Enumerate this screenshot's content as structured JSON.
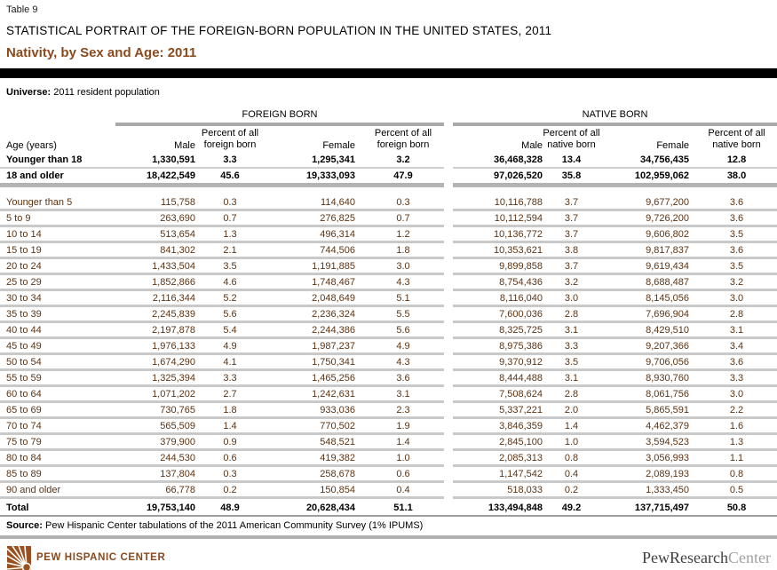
{
  "page": {
    "table_label": "Table 9",
    "report_title": "STATISTICAL PORTRAIT OF THE FOREIGN-BORN POPULATION IN THE UNITED STATES, 2011",
    "section_title": "Nativity, by Sex and Age: 2011",
    "universe_label": "Universe:",
    "universe_value": "2011 resident population"
  },
  "table": {
    "group_headers": [
      "FOREIGN BORN",
      "NATIVE BORN"
    ],
    "age_column_header": "Age (years)",
    "column_headers": [
      "Male",
      "Percent of all\nforeign born",
      "Female",
      "Percent of all\nforeign born",
      "Male",
      "Percent of all\nnative born",
      "Female",
      "Percent of all\nnative born"
    ],
    "summary_rows": [
      [
        "Younger than 18",
        "1,330,591",
        "3.3",
        "1,295,341",
        "3.2",
        "36,468,328",
        "13.4",
        "34,756,435",
        "12.8"
      ],
      [
        "18 and older",
        "18,422,549",
        "45.6",
        "19,333,093",
        "47.9",
        "97,026,520",
        "35.8",
        "102,959,062",
        "38.0"
      ]
    ],
    "detail_rows": [
      [
        "Younger than 5",
        "115,758",
        "0.3",
        "114,640",
        "0.3",
        "10,116,788",
        "3.7",
        "9,677,200",
        "3.6"
      ],
      [
        "5 to 9",
        "263,690",
        "0.7",
        "276,825",
        "0.7",
        "10,112,594",
        "3.7",
        "9,726,200",
        "3.6"
      ],
      [
        "10 to 14",
        "513,654",
        "1.3",
        "496,314",
        "1.2",
        "10,136,772",
        "3.7",
        "9,606,802",
        "3.5"
      ],
      [
        "15 to 19",
        "841,302",
        "2.1",
        "744,506",
        "1.8",
        "10,353,621",
        "3.8",
        "9,817,837",
        "3.6"
      ],
      [
        "20 to 24",
        "1,433,504",
        "3.5",
        "1,191,885",
        "3.0",
        "9,899,858",
        "3.7",
        "9,619,434",
        "3.5"
      ],
      [
        "25 to 29",
        "1,852,866",
        "4.6",
        "1,748,467",
        "4.3",
        "8,754,436",
        "3.2",
        "8,688,487",
        "3.2"
      ],
      [
        "30 to 34",
        "2,116,344",
        "5.2",
        "2,048,649",
        "5.1",
        "8,116,040",
        "3.0",
        "8,145,056",
        "3.0"
      ],
      [
        "35 to 39",
        "2,245,839",
        "5.6",
        "2,236,324",
        "5.5",
        "7,600,036",
        "2.8",
        "7,696,904",
        "2.8"
      ],
      [
        "40 to 44",
        "2,197,878",
        "5.4",
        "2,244,386",
        "5.6",
        "8,325,725",
        "3.1",
        "8,429,510",
        "3.1"
      ],
      [
        "45 to 49",
        "1,976,133",
        "4.9",
        "1,987,237",
        "4.9",
        "8,975,386",
        "3.3",
        "9,207,366",
        "3.4"
      ],
      [
        "50 to 54",
        "1,674,290",
        "4.1",
        "1,750,341",
        "4.3",
        "9,370,912",
        "3.5",
        "9,706,056",
        "3.6"
      ],
      [
        "55 to 59",
        "1,325,394",
        "3.3",
        "1,465,256",
        "3.6",
        "8,444,488",
        "3.1",
        "8,930,760",
        "3.3"
      ],
      [
        "60 to 64",
        "1,071,202",
        "2.7",
        "1,242,631",
        "3.1",
        "7,508,624",
        "2.8",
        "8,061,756",
        "3.0"
      ],
      [
        "65 to 69",
        "730,765",
        "1.8",
        "933,036",
        "2.3",
        "5,337,221",
        "2.0",
        "5,865,591",
        "2.2"
      ],
      [
        "70 to 74",
        "565,509",
        "1.4",
        "770,502",
        "1.9",
        "3,846,359",
        "1.4",
        "4,462,379",
        "1.6"
      ],
      [
        "75 to 79",
        "379,900",
        "0.9",
        "548,521",
        "1.4",
        "2,845,100",
        "1.0",
        "3,594,523",
        "1.3"
      ],
      [
        "80 to 84",
        "244,530",
        "0.6",
        "419,382",
        "1.0",
        "2,085,313",
        "0.8",
        "3,056,993",
        "1.1"
      ],
      [
        "85 to 89",
        "137,804",
        "0.3",
        "258,678",
        "0.6",
        "1,147,542",
        "0.4",
        "2,089,193",
        "0.8"
      ],
      [
        "90 and older",
        "66,778",
        "0.2",
        "150,854",
        "0.4",
        "518,033",
        "0.2",
        "1,333,450",
        "0.5"
      ]
    ],
    "total_row": [
      "Total",
      "19,753,140",
      "48.9",
      "20,628,434",
      "51.1",
      "133,494,848",
      "49.2",
      "137,715,497",
      "50.8"
    ],
    "source_label": "Source:",
    "source_text": "Pew Hispanic Center tabulations of the 2011 American Community Survey (1% IPUMS)"
  },
  "footer": {
    "left_org": "PEW HISPANIC CENTER",
    "right_org_primary": "PewResearch",
    "right_org_secondary": "Center"
  },
  "colors": {
    "accent_brown": "#8a4a1e",
    "data_text_brown": "#5d3414",
    "row_separator_gray": "#c9c9c9",
    "header_underline_gray": "#a9a9a9",
    "black_bar": "#000000",
    "footer_secondary_gray": "#a0a0a0"
  }
}
